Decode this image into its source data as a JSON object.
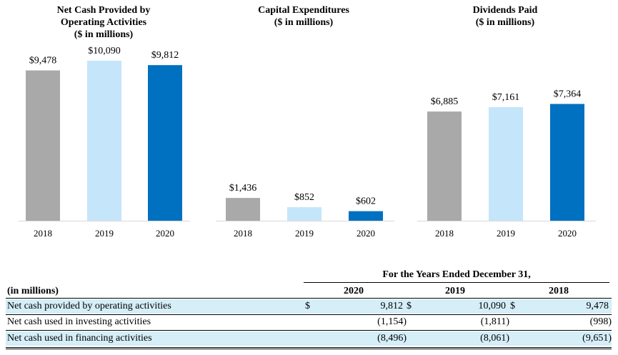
{
  "colors": {
    "2018": "#a9a9a9",
    "2019": "#c5e5fa",
    "2020": "#0070c0"
  },
  "chart_data": [
    {
      "type": "bar",
      "title_lines": [
        "Net Cash Provided by",
        "Operating Activities",
        "($ in millions)"
      ],
      "categories": [
        "2018",
        "2019",
        "2020"
      ],
      "values": [
        9478,
        10090,
        9812
      ],
      "labels": [
        "$9,478",
        "$10,090",
        "$9,812"
      ]
    },
    {
      "type": "bar",
      "title_lines": [
        "Capital Expenditures",
        "($ in millions)"
      ],
      "categories": [
        "2018",
        "2019",
        "2020"
      ],
      "values": [
        1436,
        852,
        602
      ],
      "labels": [
        "$1,436",
        "$852",
        "$602"
      ]
    },
    {
      "type": "bar",
      "title_lines": [
        "Dividends Paid",
        "($ in millions)"
      ],
      "categories": [
        "2018",
        "2019",
        "2020"
      ],
      "values": [
        6885,
        7161,
        7364
      ],
      "labels": [
        "$6,885",
        "$7,161",
        "$7,364"
      ]
    }
  ],
  "table": {
    "period_header": "For the Years Ended December 31,",
    "unit_label": "(in millions)",
    "years": [
      "2020",
      "2019",
      "2018"
    ],
    "currency": "$",
    "rows": [
      {
        "label": "Net cash provided by operating activities",
        "values": [
          "9,812",
          "10,090",
          "9,478"
        ],
        "show_currency": true
      },
      {
        "label": "Net cash used in investing activities",
        "values": [
          "(1,154)",
          "(1,811)",
          "(998)"
        ],
        "show_currency": false
      },
      {
        "label": "Net cash used in financing activities",
        "values": [
          "(8,496)",
          "(8,061)",
          "(9,651)"
        ],
        "show_currency": false
      }
    ]
  }
}
